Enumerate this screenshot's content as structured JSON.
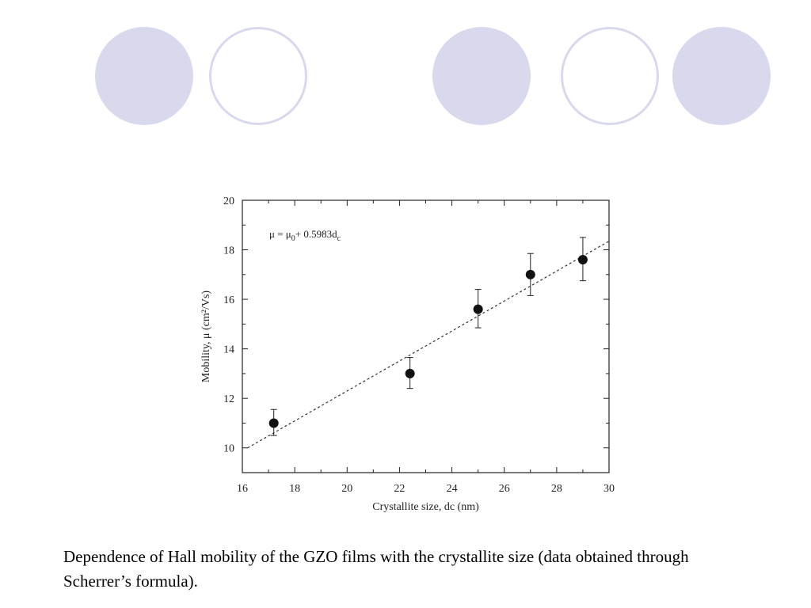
{
  "colors": {
    "circle_fill": "#d9d9ee",
    "circle_stroke": "#d9d9ee",
    "marker": "#111111",
    "fit_line": "#333333"
  },
  "decor": {
    "circles": [
      {
        "style": "filled"
      },
      {
        "style": "outline"
      },
      {
        "style": "filled"
      },
      {
        "style": "outline"
      },
      {
        "style": "filled"
      }
    ]
  },
  "caption": "Dependence of Hall mobility of the GZO films with the crystallite size (data obtained through Scherrer’s formula).",
  "chart_data": {
    "type": "scatter",
    "xlabel": "Crystallite size, dc (nm)",
    "ylabel": "Mobility, μ (cm²/Vs)",
    "xlim": [
      16,
      30
    ],
    "ylim": [
      9,
      20
    ],
    "x_ticks": [
      16,
      18,
      20,
      22,
      24,
      26,
      28,
      30
    ],
    "y_ticks": [
      10,
      12,
      14,
      16,
      18,
      20
    ],
    "grid": false,
    "points": [
      {
        "x": 17.2,
        "y": 11.0,
        "err_low": 10.5,
        "err_high": 11.55
      },
      {
        "x": 22.4,
        "y": 13.0,
        "err_low": 12.4,
        "err_high": 13.65
      },
      {
        "x": 25.0,
        "y": 15.6,
        "err_low": 14.85,
        "err_high": 16.4
      },
      {
        "x": 27.0,
        "y": 17.0,
        "err_low": 16.15,
        "err_high": 17.85
      },
      {
        "x": 29.0,
        "y": 17.6,
        "err_low": 16.75,
        "err_high": 18.5
      }
    ],
    "fit_line": {
      "style": "dashed",
      "x": [
        16.2,
        30.0
      ],
      "y": [
        10.0,
        18.35
      ]
    },
    "annotation": {
      "parts": [
        "μ = μ",
        "0",
        "+ 0.5983d",
        "c"
      ]
    }
  }
}
